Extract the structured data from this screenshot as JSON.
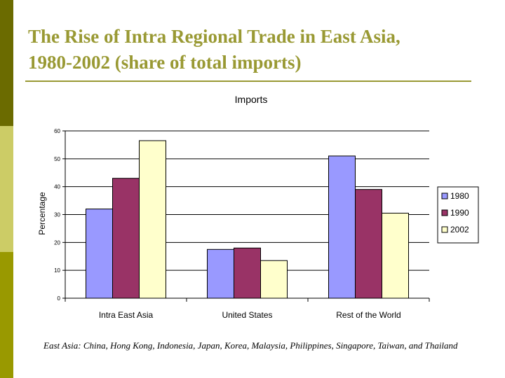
{
  "slide": {
    "title_line1": "The Rise of Intra Regional Trade in East Asia,",
    "title_line2": "1980-2002 (share of total imports)",
    "footnote": "East Asia: China, Hong Kong, Indonesia, Japan, Korea, Malaysia, Philippines, Singapore, Taiwan, and Thailand"
  },
  "colors": {
    "title": "#999933",
    "sidebar_dark": "#6b6b00",
    "sidebar_light": "#cccc66",
    "sidebar_mid": "#999900"
  },
  "chart_data": {
    "type": "bar",
    "title": "Imports",
    "xlabel": "",
    "ylabel": "Percentage",
    "categories": [
      "Intra East Asia",
      "United States",
      "Rest of the World"
    ],
    "series": [
      {
        "name": "1980",
        "color": "#9999ff",
        "values": [
          32,
          17.5,
          51
        ]
      },
      {
        "name": "1990",
        "color": "#993366",
        "values": [
          43,
          18,
          39
        ]
      },
      {
        "name": "2002",
        "color": "#ffffcc",
        "values": [
          56.5,
          13.5,
          30.5
        ]
      }
    ],
    "ylim": [
      0,
      60
    ],
    "yticks": [
      "0",
      "10",
      "20",
      "30",
      "40",
      "50",
      "60"
    ],
    "grid": true,
    "legend": "right"
  }
}
